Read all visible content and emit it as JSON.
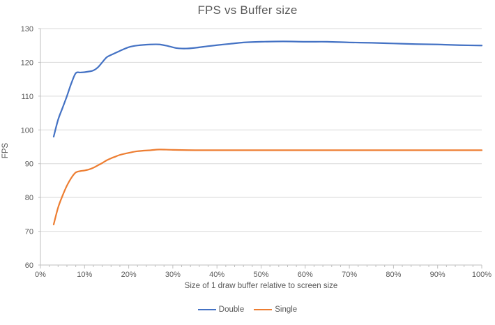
{
  "chart_data": {
    "type": "line",
    "title": "FPS vs Buffer size",
    "xlabel": "Size of 1 draw buffer relative to screen size",
    "ylabel": "FPS",
    "xlim": [
      0,
      100
    ],
    "ylim": [
      60,
      130
    ],
    "y_ticks": [
      60,
      70,
      80,
      90,
      100,
      110,
      120,
      130
    ],
    "x_ticks": [
      0,
      10,
      20,
      30,
      40,
      50,
      60,
      70,
      80,
      90,
      100
    ],
    "x_tick_labels": [
      "0%",
      "10%",
      "20%",
      "30%",
      "40%",
      "50%",
      "60%",
      "70%",
      "80%",
      "90%",
      "100%"
    ],
    "x_minor_tick_step": 2,
    "grid": true,
    "legend_position": "bottom",
    "colors": {
      "background": "#FFFFFF",
      "gridline": "#D9D9D9",
      "axis": "#BFBFBF",
      "text": "#595959"
    },
    "series": [
      {
        "name": "Double",
        "color": "#4472C4",
        "points": [
          [
            3,
            98
          ],
          [
            4,
            103
          ],
          [
            5,
            106.5
          ],
          [
            6,
            110
          ],
          [
            7,
            113.8
          ],
          [
            8,
            116.8
          ],
          [
            9,
            117
          ],
          [
            10,
            117.1
          ],
          [
            11,
            117.3
          ],
          [
            12,
            117.6
          ],
          [
            13,
            118.5
          ],
          [
            14,
            120
          ],
          [
            15,
            121.5
          ],
          [
            16,
            122.2
          ],
          [
            17,
            122.8
          ],
          [
            18,
            123.4
          ],
          [
            20,
            124.5
          ],
          [
            22,
            125
          ],
          [
            25,
            125.3
          ],
          [
            27,
            125.3
          ],
          [
            29,
            124.8
          ],
          [
            31,
            124.2
          ],
          [
            33,
            124.1
          ],
          [
            35,
            124.3
          ],
          [
            38,
            124.8
          ],
          [
            40,
            125.1
          ],
          [
            43,
            125.5
          ],
          [
            46,
            125.9
          ],
          [
            50,
            126.1
          ],
          [
            55,
            126.2
          ],
          [
            60,
            126.1
          ],
          [
            65,
            126.1
          ],
          [
            70,
            125.9
          ],
          [
            75,
            125.8
          ],
          [
            80,
            125.6
          ],
          [
            85,
            125.4
          ],
          [
            90,
            125.3
          ],
          [
            95,
            125.1
          ],
          [
            100,
            125
          ]
        ]
      },
      {
        "name": "Single",
        "color": "#ED7D31",
        "points": [
          [
            3,
            72
          ],
          [
            4,
            77
          ],
          [
            5,
            80.5
          ],
          [
            6,
            83.5
          ],
          [
            7,
            85.8
          ],
          [
            8,
            87.4
          ],
          [
            9,
            87.8
          ],
          [
            10,
            88
          ],
          [
            11,
            88.3
          ],
          [
            12,
            88.8
          ],
          [
            13,
            89.5
          ],
          [
            14,
            90.2
          ],
          [
            15,
            91
          ],
          [
            16,
            91.6
          ],
          [
            17,
            92.1
          ],
          [
            18,
            92.6
          ],
          [
            20,
            93.2
          ],
          [
            22,
            93.7
          ],
          [
            25,
            94
          ],
          [
            27,
            94.2
          ],
          [
            30,
            94.1
          ],
          [
            35,
            94
          ],
          [
            40,
            94
          ],
          [
            45,
            94
          ],
          [
            50,
            94
          ],
          [
            55,
            94
          ],
          [
            60,
            94
          ],
          [
            65,
            94
          ],
          [
            70,
            94
          ],
          [
            75,
            94
          ],
          [
            80,
            94
          ],
          [
            85,
            94
          ],
          [
            90,
            94
          ],
          [
            95,
            94
          ],
          [
            100,
            94
          ]
        ]
      }
    ]
  }
}
